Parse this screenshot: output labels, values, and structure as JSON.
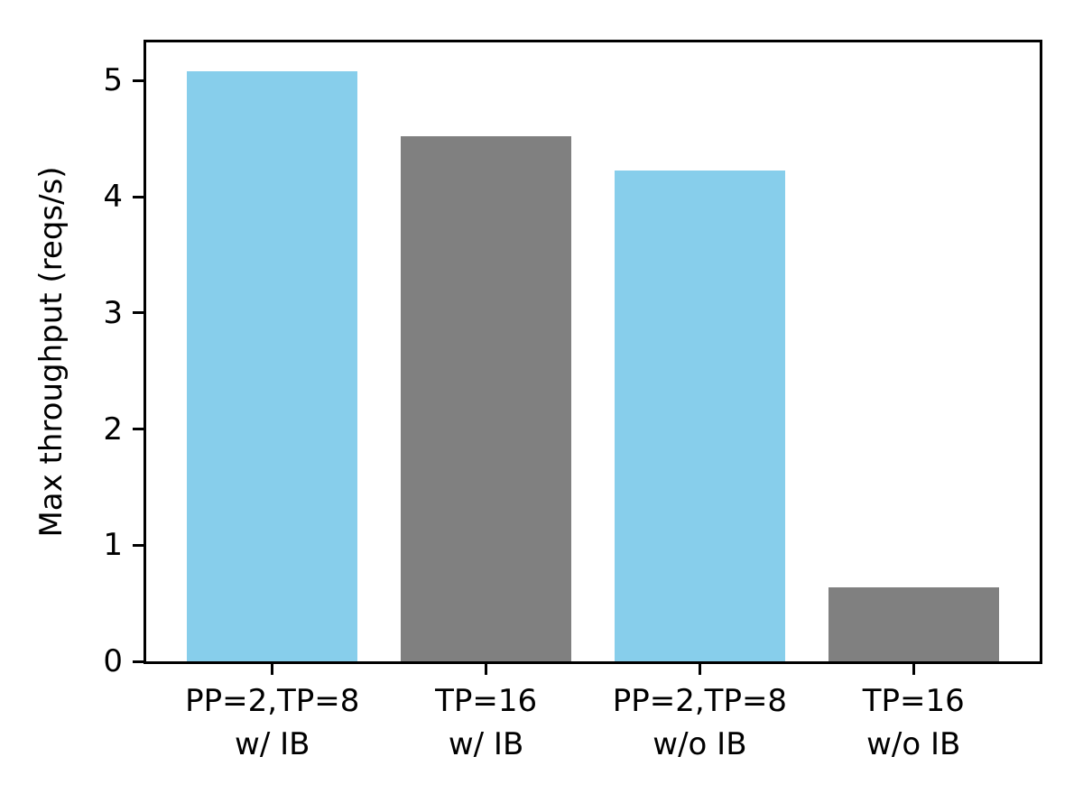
{
  "figure": {
    "background": "#ffffff"
  },
  "chart_data": {
    "type": "bar",
    "title": "",
    "xlabel": "",
    "ylabel": "Max throughput (reqs/s)",
    "categories": [
      "PP=2,TP=8\nw/ IB",
      "TP=16\nw/ IB",
      "PP=2,TP=8\nw/o IB",
      "TP=16\nw/o IB"
    ],
    "values": [
      5.08,
      4.52,
      4.23,
      0.64
    ],
    "bar_colors": [
      "#87CEEB",
      "#808080",
      "#87CEEB",
      "#808080"
    ],
    "ylim": [
      0,
      5.33
    ],
    "yticks": [
      0,
      1,
      2,
      3,
      4,
      5
    ],
    "grid": false,
    "legend": null,
    "axis_color": "#000000",
    "text_color": "#000000"
  }
}
